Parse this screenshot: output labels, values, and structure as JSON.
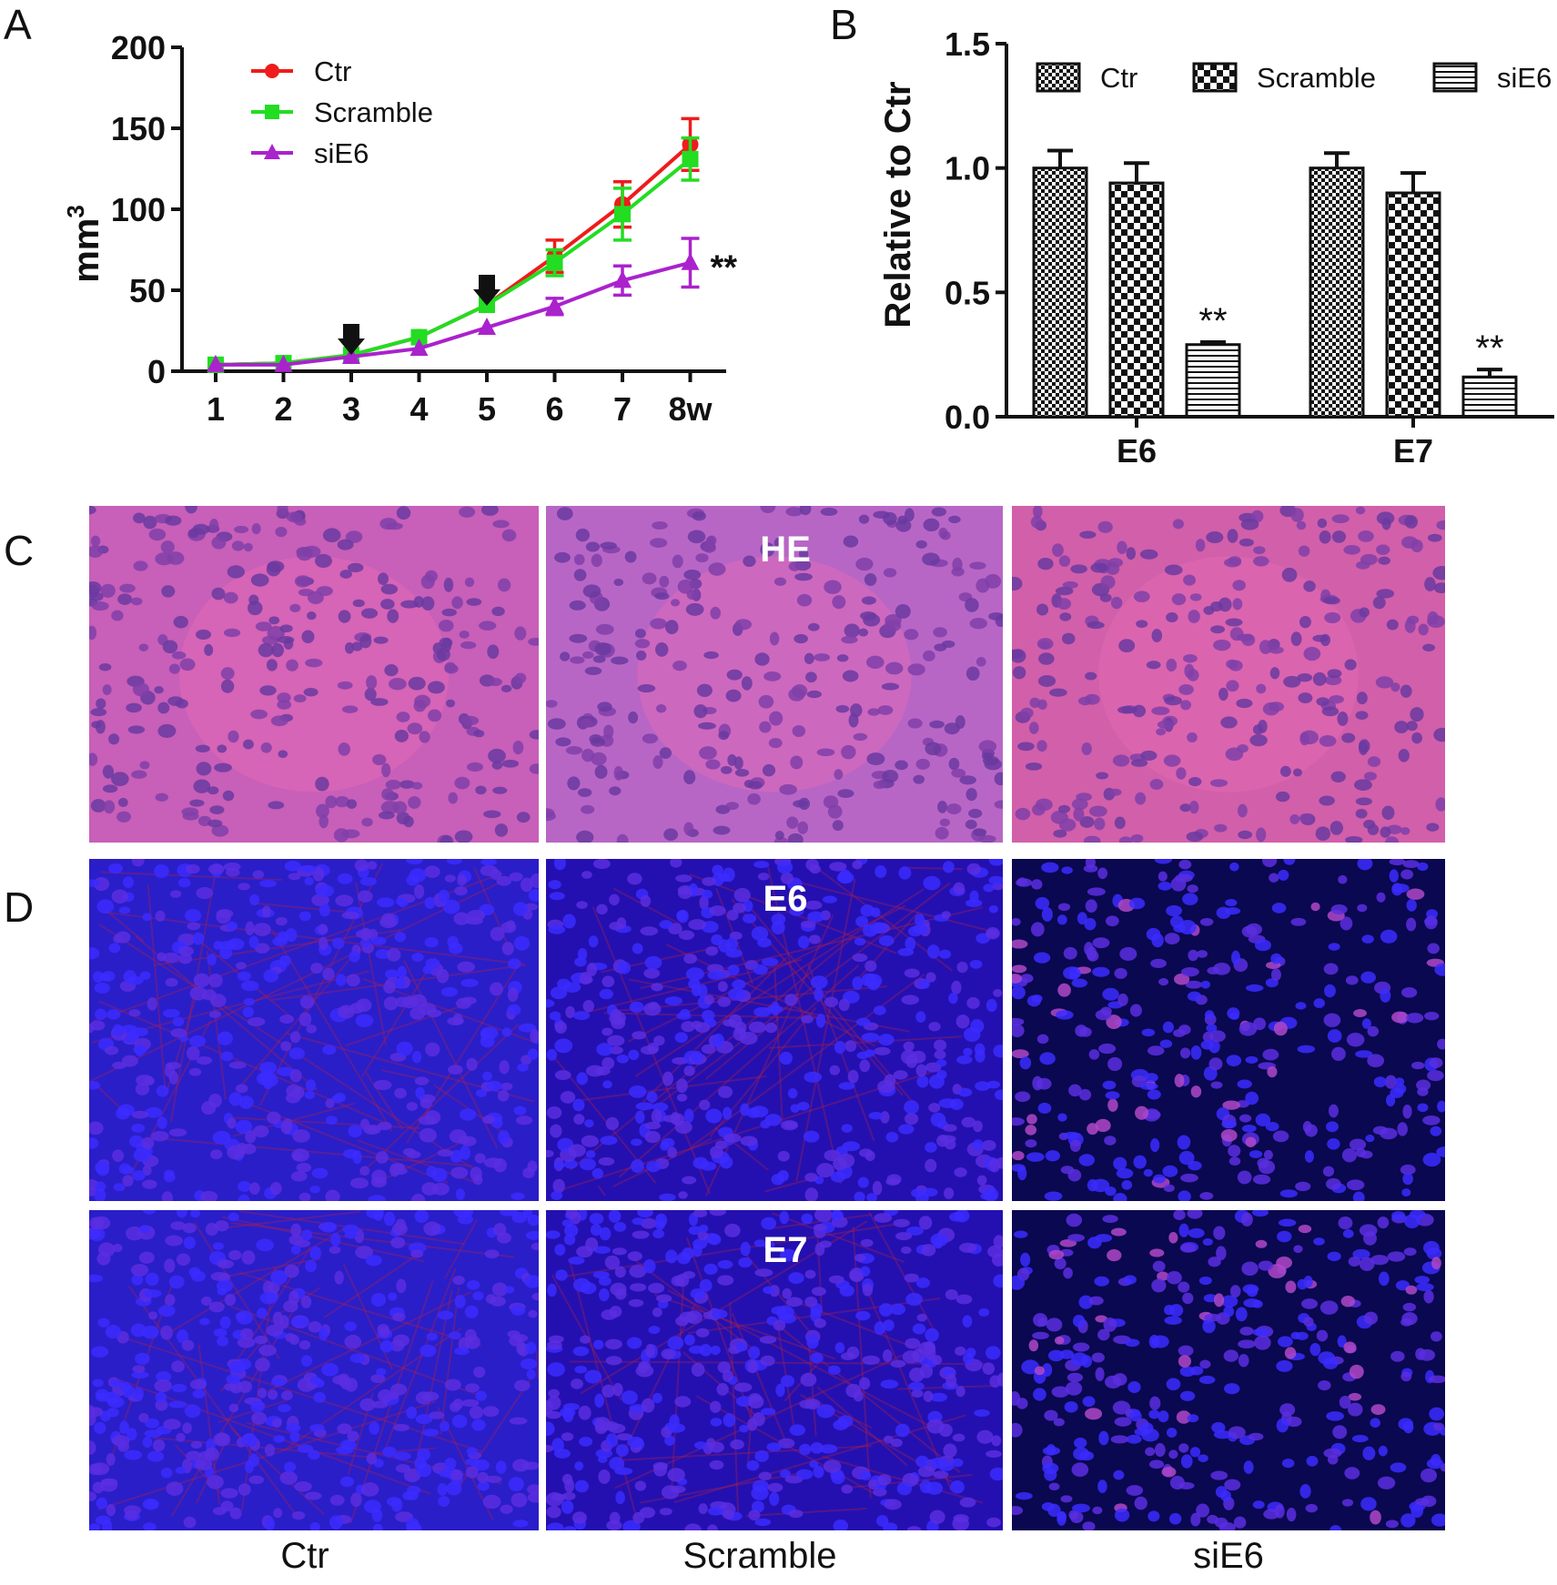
{
  "panels": {
    "a": "A",
    "b": "B",
    "c": "C",
    "d": "D"
  },
  "chart_data": [
    {
      "type": "line",
      "panel": "A",
      "title": "",
      "xlabel": "",
      "ylabel": "mm",
      "ylabel_superscript": "3",
      "x": [
        1,
        2,
        3,
        4,
        5,
        6,
        7,
        8
      ],
      "xtick_labels": [
        "1",
        "2",
        "3",
        "4",
        "5",
        "6",
        "7",
        "8w"
      ],
      "ylim": [
        0,
        200
      ],
      "yticks": [
        0,
        50,
        100,
        150,
        200
      ],
      "series": [
        {
          "name": "Ctr",
          "color": "#ee1c1c",
          "marker": "circle",
          "values": [
            4,
            5,
            10,
            21,
            41,
            71,
            103,
            140
          ],
          "errors": [
            0,
            0,
            0,
            0,
            0,
            10,
            14,
            16
          ]
        },
        {
          "name": "Scramble",
          "color": "#22dd22",
          "marker": "square",
          "values": [
            4,
            5,
            10,
            21,
            41,
            67,
            97,
            131
          ],
          "errors": [
            0,
            0,
            0,
            0,
            0,
            8,
            16,
            13
          ]
        },
        {
          "name": "siE6",
          "color": "#aa22cc",
          "marker": "triangle",
          "values": [
            4,
            4,
            9,
            14,
            27,
            40,
            56,
            67
          ],
          "errors": [
            0,
            0,
            0,
            0,
            0,
            5,
            9,
            15
          ]
        }
      ],
      "arrow_weeks": [
        3,
        5
      ],
      "annotation": {
        "text": "**",
        "week": 8
      }
    },
    {
      "type": "bar",
      "panel": "B",
      "title": "",
      "xlabel": "",
      "ylabel": "Relative to Ctr",
      "categories": [
        "E6",
        "E7"
      ],
      "ylim": [
        0,
        1.5
      ],
      "yticks": [
        "0.0",
        "0.5",
        "1.0",
        "1.5"
      ],
      "series": [
        {
          "name": "Ctr",
          "pattern": "fine-check",
          "values": [
            1.0,
            1.0
          ],
          "errors": [
            0.07,
            0.06
          ]
        },
        {
          "name": "Scramble",
          "pattern": "coarse-check",
          "values": [
            0.94,
            0.9
          ],
          "errors": [
            0.08,
            0.08
          ]
        },
        {
          "name": "siE6",
          "pattern": "horizontal-stripes",
          "values": [
            0.29,
            0.16
          ],
          "errors": [
            0.01,
            0.03
          ]
        }
      ],
      "annotations": [
        {
          "text": "**",
          "category": "E6",
          "series": "siE6"
        },
        {
          "text": "**",
          "category": "E7",
          "series": "siE6"
        }
      ]
    }
  ],
  "micrographs": {
    "row_labels": {
      "he": "HE",
      "e6": "E6",
      "e7": "E7"
    },
    "column_labels": [
      "Ctr",
      "Scramble",
      "siE6"
    ]
  }
}
